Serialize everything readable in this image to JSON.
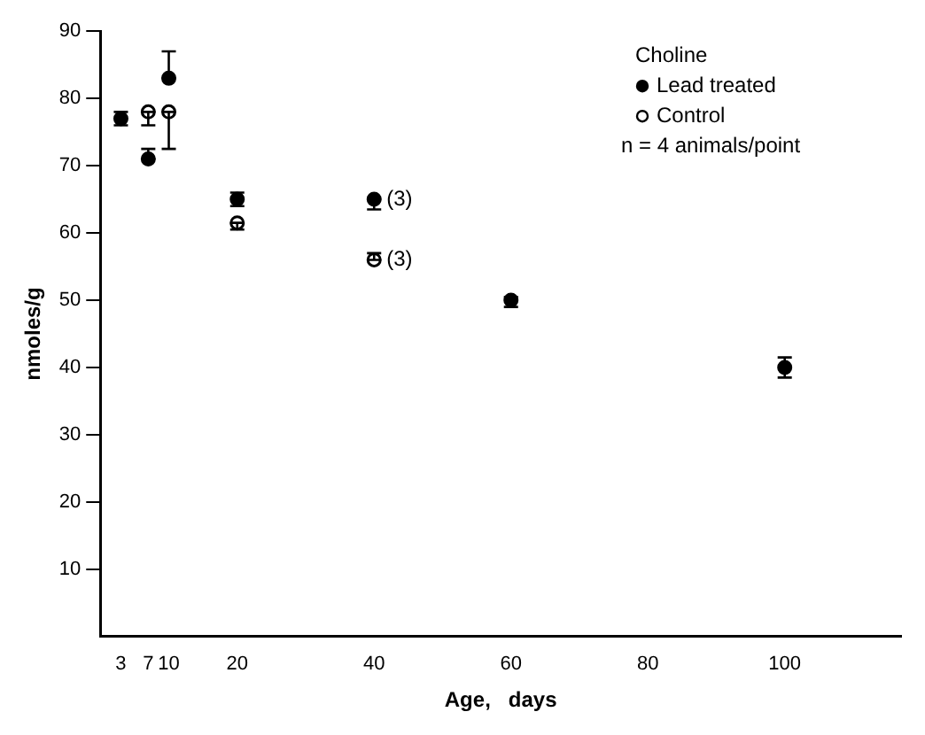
{
  "chart_data": {
    "type": "scatter",
    "xlabel": "Age,   days",
    "ylabel": "nmoles/g",
    "legend_title": "Choline",
    "x": [
      3,
      7,
      10,
      20,
      40,
      60,
      100
    ],
    "series": [
      {
        "name": "Lead treated",
        "color": "#000000",
        "values": [
          77,
          71,
          83,
          65,
          65,
          50,
          40
        ],
        "errors": [
          [
            76,
            78
          ],
          [
            71,
            72.5
          ],
          [
            83,
            87
          ],
          [
            64,
            66
          ],
          [
            63.5,
            65
          ],
          [
            49,
            50.5
          ],
          [
            38.5,
            41.5
          ]
        ]
      },
      {
        "name": "Control",
        "color": "#000000",
        "values": [
          null,
          78,
          78,
          61.5,
          56,
          null,
          null
        ],
        "errors": [
          null,
          [
            76,
            78
          ],
          [
            72.5,
            78
          ],
          [
            60.5,
            61.5
          ],
          [
            56,
            57
          ],
          null,
          null
        ]
      }
    ],
    "annotations": [
      {
        "text": "(3)",
        "x": 40,
        "y": 65
      },
      {
        "text": "(3)",
        "x": 40,
        "y": 56
      },
      "n = 4 animals/point"
    ],
    "xlim": [
      0,
      117
    ],
    "xticks": [
      3,
      7,
      10,
      20,
      40,
      60,
      80,
      100
    ],
    "ylim": [
      0,
      90
    ],
    "yticks": [
      10,
      20,
      30,
      40,
      50,
      60,
      70,
      80,
      90
    ],
    "grid": false,
    "legend": "top right",
    "marker": "circle"
  }
}
